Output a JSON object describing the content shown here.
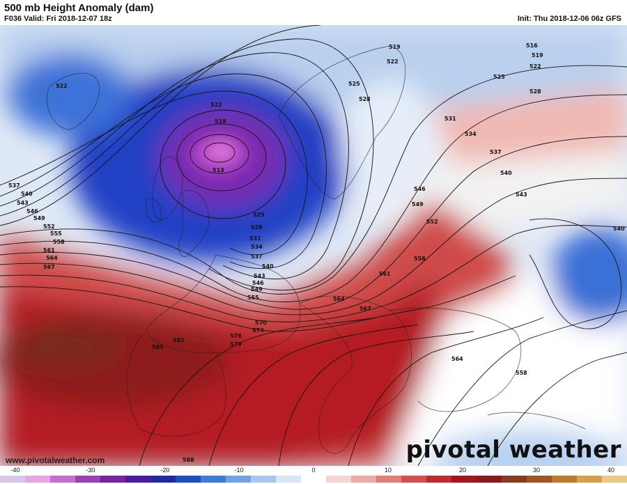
{
  "header": {
    "title": "500 mb Height Anomaly (dam)",
    "valid": "F036 Valid: Fri 2018-12-07 18z",
    "init": "Init: Thu 2018-12-06 06z GFS"
  },
  "footer": {
    "website": "www.pivotalweather.com",
    "logo_text": "pivotal weather"
  },
  "contour_labels": [
    "513",
    "516",
    "519",
    "522",
    "525",
    "528",
    "531",
    "534",
    "537",
    "540",
    "543",
    "546",
    "549",
    "552",
    "555",
    "558",
    "561",
    "564",
    "567",
    "570",
    "573",
    "576",
    "579",
    "582",
    "585",
    "588"
  ],
  "colorbar": {
    "ticks": [
      "-40",
      "-30",
      "-20",
      "-10",
      "0",
      "10",
      "20",
      "30",
      "40"
    ],
    "colors": [
      "#d9c7ec",
      "#e6a5e4",
      "#c66fd0",
      "#9b3fb7",
      "#7a22a6",
      "#4a1aa0",
      "#1f2aa8",
      "#1e50c4",
      "#3c7bd8",
      "#6fa2e6",
      "#a7c6f0",
      "#d8e6f8",
      "#ffffff",
      "#f6d6d3",
      "#eeaaa5",
      "#e27d77",
      "#d5504c",
      "#c42a2c",
      "#a8141c",
      "#8d1a1a",
      "#8a3a1f",
      "#a2561f",
      "#c17a2a",
      "#d9a04a",
      "#ebc887"
    ]
  },
  "colors": {
    "anomaly_low": "#1e3cb8",
    "anomaly_deep_low": "#8c2ab8",
    "anomaly_high": "#c42a2c",
    "anomaly_neutral": "#ffffff"
  }
}
